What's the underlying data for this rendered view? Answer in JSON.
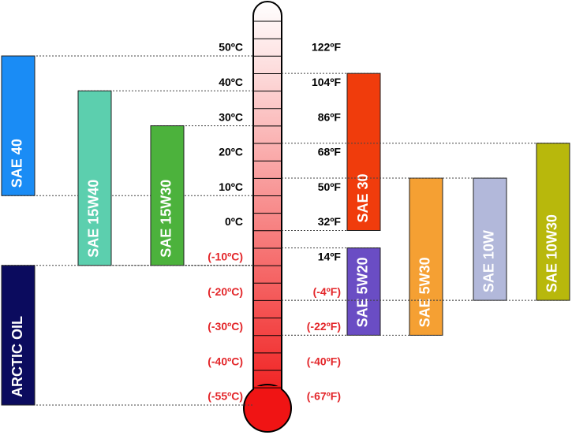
{
  "chart_data": {
    "type": "range",
    "categories": [
      "SAE 40",
      "SAE 15W40",
      "SAE 15W30",
      "ARCTIC OIL",
      "SAE 30",
      "SAE 5W20",
      "SAE 5W30",
      "SAE 10W",
      "SAE 10W30"
    ],
    "high": [
      50,
      40,
      30,
      -10,
      45,
      -5,
      15,
      15,
      25
    ],
    "low": [
      10,
      -10,
      -10,
      -55,
      0,
      -30,
      -30,
      -20,
      -20
    ],
    "colors": [
      "#1a8cf5",
      "#5ccfae",
      "#4cb23c",
      "#0b0b5e",
      "#f03c0c",
      "#6a4dc4",
      "#f5a033",
      "#b2b8da",
      "#b8b80c"
    ],
    "yticks": [
      {
        "value": 50,
        "label": "50ºC"
      },
      {
        "value": 40,
        "label": "40ºC"
      },
      {
        "value": 30,
        "label": "30ºC"
      },
      {
        "value": 20,
        "label": "20ºC"
      },
      {
        "value": 10,
        "label": "10ºC"
      },
      {
        "value": 0,
        "label": "0ºC"
      },
      {
        "value": -10,
        "label": "(-10ºC)"
      },
      {
        "value": -20,
        "label": "(-20ºC)"
      },
      {
        "value": -30,
        "label": "(-30ºC)"
      },
      {
        "value": -40,
        "label": "(-40ºC)"
      },
      {
        "value": -55,
        "label": "(-55ºC)"
      }
    ],
    "y2ticks": [
      {
        "value": 122,
        "label": "122ºF"
      },
      {
        "value": 104,
        "label": "104ºF"
      },
      {
        "value": 86,
        "label": "86ºF"
      },
      {
        "value": 68,
        "label": "68ºF"
      },
      {
        "value": 50,
        "label": "50ºF"
      },
      {
        "value": 32,
        "label": "32ºF"
      },
      {
        "value": 14,
        "label": "14ºF"
      },
      {
        "value": -4,
        "label": "(-4ºF)"
      },
      {
        "value": -22,
        "label": "(-22ºF)"
      },
      {
        "value": -40,
        "label": "(-40ºF)"
      },
      {
        "value": -67,
        "label": "(-67ºF)"
      }
    ],
    "negative_color": "#e3262a"
  }
}
